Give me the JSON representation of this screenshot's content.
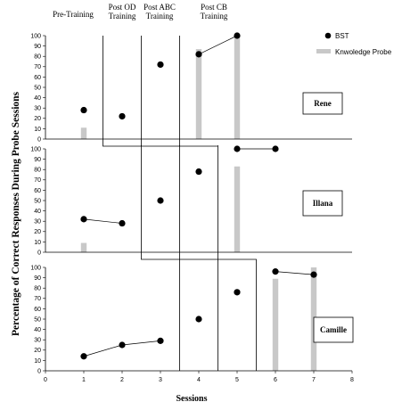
{
  "chart_data": {
    "type": "multiple-baseline",
    "xlabel": "Sessions",
    "ylabel": "Percentage of Correct Responses During Probe Sessions",
    "xlim": [
      0,
      8
    ],
    "x_ticks": [
      "0",
      "1",
      "2",
      "3",
      "4",
      "5",
      "6",
      "7",
      "8"
    ],
    "ylim": [
      0,
      100
    ],
    "y_ticks": [
      "0",
      "10",
      "20",
      "30",
      "40",
      "50",
      "60",
      "70",
      "80",
      "90",
      "100"
    ],
    "phases": [
      {
        "label": [
          "Pre-Training"
        ]
      },
      {
        "label": [
          "Post OD",
          "Training"
        ]
      },
      {
        "label": [
          "Post ABC",
          "Training"
        ]
      },
      {
        "label": [
          "Post CB",
          "Training"
        ]
      }
    ],
    "legend": {
      "bst": "BST",
      "probe": "Knwoledge Probe",
      "placement": "top-right"
    },
    "panels": [
      {
        "participant": "Rene",
        "bst": [
          {
            "x": 1,
            "y": 28
          },
          {
            "x": 2,
            "y": 22
          },
          {
            "x": 3,
            "y": 72
          },
          {
            "x": 4,
            "y": 82
          },
          {
            "x": 5,
            "y": 100
          }
        ],
        "bst_connected": [
          [
            4,
            5
          ]
        ],
        "probe": [
          {
            "x": 1,
            "y": 11
          },
          {
            "x": 4,
            "y": 87
          },
          {
            "x": 5,
            "y": 100
          }
        ],
        "phase_changes": [
          1.5,
          2.5,
          3.5
        ]
      },
      {
        "participant": "Illana",
        "bst": [
          {
            "x": 1,
            "y": 32
          },
          {
            "x": 2,
            "y": 28
          },
          {
            "x": 3,
            "y": 50
          },
          {
            "x": 4,
            "y": 78
          },
          {
            "x": 5,
            "y": 100
          },
          {
            "x": 6,
            "y": 100
          }
        ],
        "bst_connected": [
          [
            1,
            2
          ],
          [
            5,
            6
          ]
        ],
        "probe": [
          {
            "x": 1,
            "y": 9
          },
          {
            "x": 5,
            "y": 83
          }
        ],
        "phase_changes": [
          2.5,
          3.5,
          4.5
        ]
      },
      {
        "participant": "Camille",
        "bst": [
          {
            "x": 1,
            "y": 14
          },
          {
            "x": 2,
            "y": 25
          },
          {
            "x": 3,
            "y": 29
          },
          {
            "x": 4,
            "y": 50
          },
          {
            "x": 5,
            "y": 76
          },
          {
            "x": 6,
            "y": 96
          },
          {
            "x": 7,
            "y": 93
          }
        ],
        "bst_connected": [
          [
            1,
            2,
            3
          ],
          [
            6,
            7
          ]
        ],
        "probe": [
          {
            "x": 6,
            "y": 89
          },
          {
            "x": 7,
            "y": 100
          }
        ],
        "phase_changes": [
          3.5,
          4.5,
          5.5
        ]
      }
    ]
  }
}
